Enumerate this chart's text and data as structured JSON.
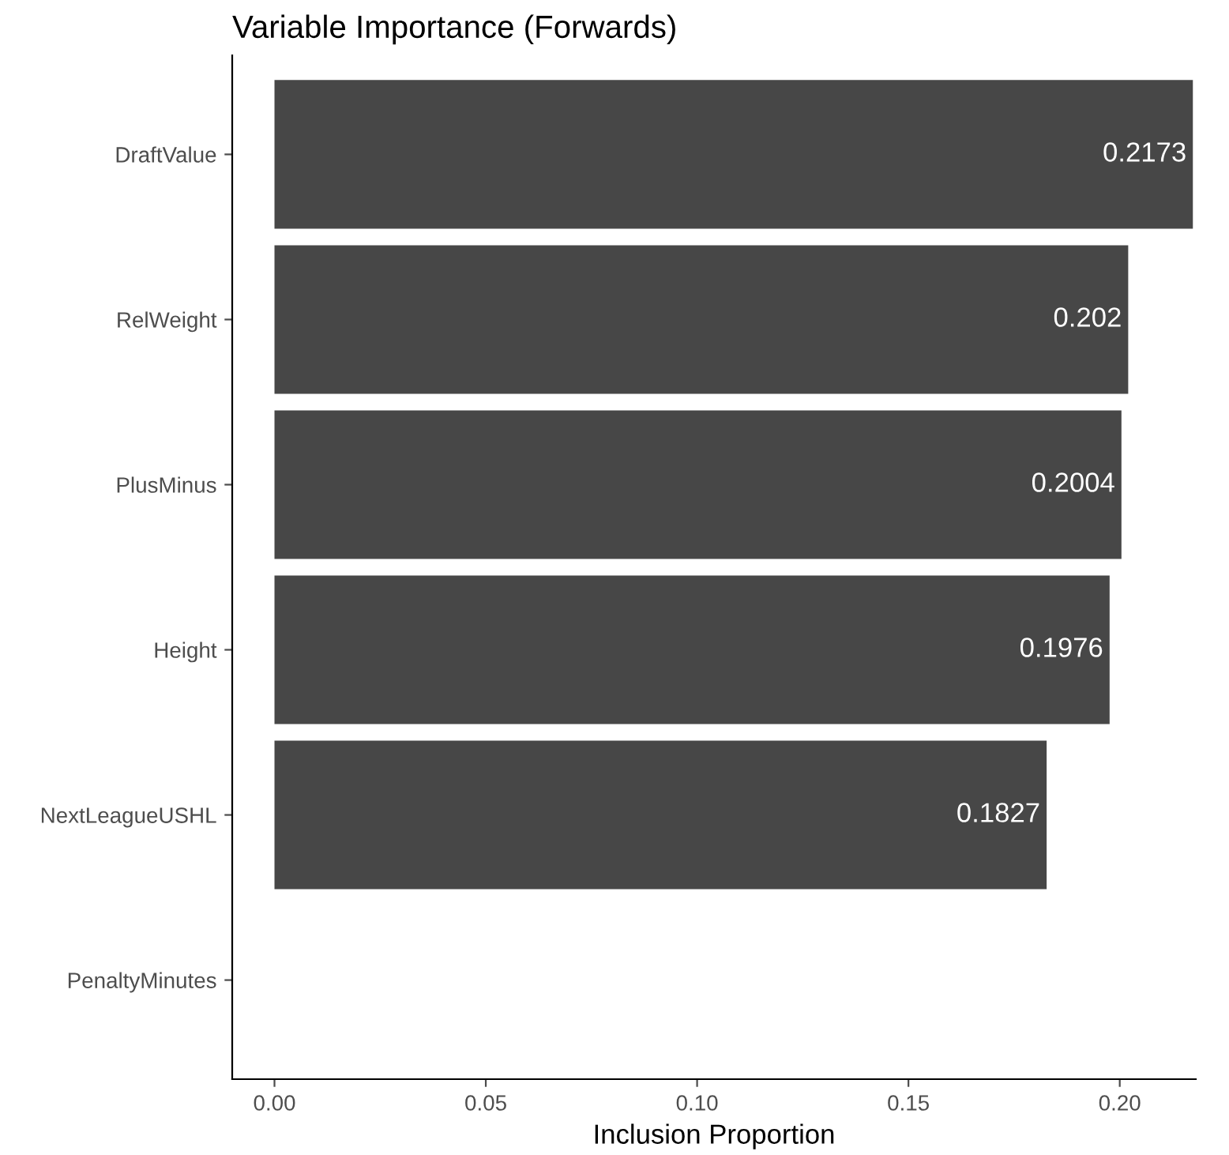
{
  "chart_data": {
    "type": "bar",
    "orientation": "horizontal",
    "title": "Variable Importance (Forwards)",
    "xlabel": "Inclusion Proportion",
    "categories": [
      "DraftValue",
      "RelWeight",
      "PlusMinus",
      "Height",
      "NextLeagueUSHL",
      "PenaltyMinutes"
    ],
    "values": [
      0.2173,
      0.202,
      0.2004,
      0.1976,
      0.1827,
      0
    ],
    "value_labels": [
      "0.2173",
      "0.202",
      "0.2004",
      "0.1976",
      "0.1827",
      null
    ],
    "color": "#474747",
    "xlim": [
      -0.01,
      0.218
    ],
    "xticks": [
      {
        "value": 0,
        "label": "0.00"
      },
      {
        "value": 0.05,
        "label": "0.05"
      },
      {
        "value": 0.1,
        "label": "0.10"
      },
      {
        "value": 0.15,
        "label": "0.15"
      },
      {
        "value": 0.2,
        "label": "0.20"
      }
    ],
    "grid": false
  }
}
